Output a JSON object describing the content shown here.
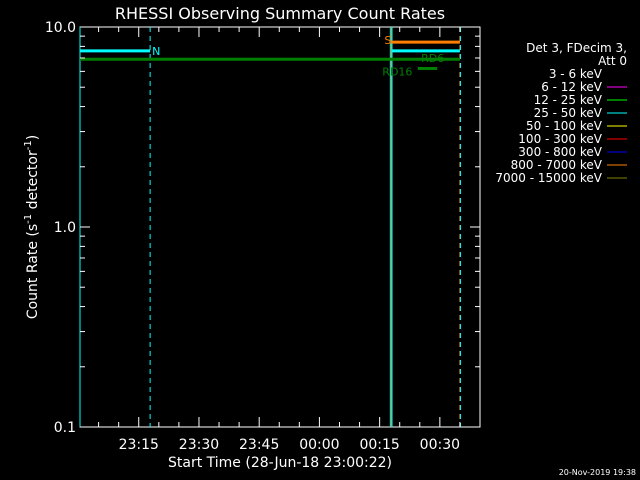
{
  "chart_data": {
    "type": "line",
    "title": "RHESSI Observing Summary Count Rates",
    "xlabel": "Start Time (28-Jun-18 23:00:22)",
    "ylabel_main": "Count Rate (s",
    "ylabel_sup1": "-1",
    "ylabel_mid": " detector",
    "ylabel_sup2": "-1",
    "ylabel_end": ")",
    "y_scale": "log",
    "ylim": [
      0.1,
      10.0
    ],
    "xlim": [
      "23:00:22",
      "00:40:00"
    ],
    "x_ticks": [
      {
        "label": "23:15",
        "value": "23:15"
      },
      {
        "label": "23:30",
        "value": "23:30"
      },
      {
        "label": "23:45",
        "value": "23:45"
      },
      {
        "label": "00:00",
        "value": "00:00"
      },
      {
        "label": "00:15",
        "value": "00:15"
      },
      {
        "label": "00:30",
        "value": "00:30"
      }
    ],
    "y_ticks": [
      {
        "label": "0.1",
        "value": 0.1
      },
      {
        "label": "1.0",
        "value": 1.0
      },
      {
        "label": "10.0",
        "value": 10.0
      }
    ],
    "legend_header": [
      "Det 3, FDecim 3,",
      "Att 0"
    ],
    "series": [
      {
        "name": "3 - 6 keV",
        "color": "#000000"
      },
      {
        "name": "6 - 12 keV",
        "color": "#ff00ff"
      },
      {
        "name": "12 - 25 keV",
        "color": "#00ff00"
      },
      {
        "name": "25 - 50 keV",
        "color": "#00ffff"
      },
      {
        "name": "50 - 100 keV",
        "color": "#ffff00"
      },
      {
        "name": "100 - 300 keV",
        "color": "#ff0000"
      },
      {
        "name": "300 - 800 keV",
        "color": "#0000ff"
      },
      {
        "name": "800 - 7000 keV",
        "color": "#ff8000"
      },
      {
        "name": "7000 - 15000 keV",
        "color": "#808000"
      }
    ],
    "segments": [
      {
        "color": "#00ffff",
        "x0": "23:00:22",
        "x1": "23:17:50",
        "y": 7.6
      },
      {
        "color": "#00ffff",
        "x0": "00:18:00",
        "x1": "00:35:00",
        "y": 7.6
      },
      {
        "color": "#ff8000",
        "x0": "00:18:00",
        "x1": "00:35:00",
        "y": 8.4
      },
      {
        "color": "#008000",
        "x0": "23:00:22",
        "x1": "00:35:00",
        "y": 6.9
      },
      {
        "color": "#008000",
        "x0": "00:24:30",
        "x1": "00:29:20",
        "y": 6.2
      }
    ],
    "vertical_markers": [
      {
        "x": "23:00:22",
        "color": "#00ffff",
        "style": "solid"
      },
      {
        "x": "23:17:50",
        "color": "#00ffff",
        "style": "dashed"
      },
      {
        "x": "00:17:40",
        "color": "#00ffff",
        "style": "solid"
      },
      {
        "x": "00:17:55",
        "color": "#ff8000",
        "style": "solid"
      },
      {
        "x": "00:18:05",
        "color": "#00ffff",
        "style": "solid"
      },
      {
        "x": "00:35:00",
        "color": "#ff8000",
        "style": "dashed"
      },
      {
        "x": "00:35:08",
        "color": "#00ffff",
        "style": "dashed"
      }
    ],
    "annotations": [
      {
        "text": "N",
        "color": "#00ffff",
        "x": "23:18:20",
        "y": 7.6
      },
      {
        "text": "S",
        "color": "#ff8000",
        "x": "00:16:10",
        "y": 8.6
      },
      {
        "text": "RD6",
        "color": "#008000",
        "x": "00:25:20",
        "y": 7.0
      },
      {
        "text": "RD16",
        "color": "#008000",
        "x": "00:15:40",
        "y": 6.0
      }
    ],
    "timestamp": "20-Nov-2019 19:38"
  }
}
